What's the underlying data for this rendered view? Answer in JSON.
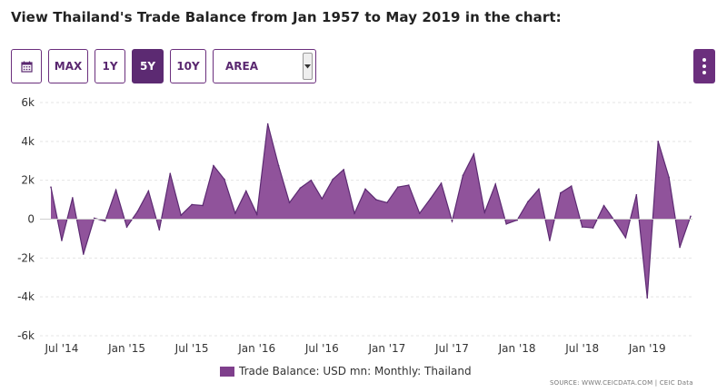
{
  "page": {
    "title": "View Thailand's Trade Balance from Jan 1957 to May 2019 in the chart:"
  },
  "toolbar": {
    "calendar_icon": "calendar-icon",
    "range_buttons": [
      "MAX",
      "1Y",
      "5Y",
      "10Y"
    ],
    "active_range": "5Y",
    "chart_type_select": {
      "value": "AREA",
      "icon": "chevron-down-icon"
    },
    "menu_icon": "kebab-menu-icon"
  },
  "colors": {
    "accent": "#5c2a72",
    "series_fill": "#8a4a96",
    "series_line": "#5c2a72"
  },
  "source": "SOURCE: WWW.CEICDATA.COM | CEIC Data",
  "chart_data": {
    "type": "area",
    "title": "",
    "xlabel": "",
    "ylabel": "",
    "ylim": [
      -6000,
      6000
    ],
    "y_ticks": [
      -6000,
      -4000,
      -2000,
      0,
      2000,
      4000,
      6000
    ],
    "y_tick_labels": [
      "-6k",
      "-4k",
      "-2k",
      "0",
      "2k",
      "4k",
      "6k"
    ],
    "x_tick_labels": [
      "Jul '14",
      "Jan '15",
      "Jul '15",
      "Jan '16",
      "Jul '16",
      "Jan '17",
      "Jul '17",
      "Jan '18",
      "Jul '18",
      "Jan '19"
    ],
    "x_tick_months": [
      "2014-07",
      "2015-01",
      "2015-07",
      "2016-01",
      "2016-07",
      "2017-01",
      "2017-07",
      "2018-01",
      "2018-07",
      "2019-01"
    ],
    "grid": true,
    "legend_position": "bottom-center",
    "series": [
      {
        "name": "Trade Balance: USD mn: Monthly: Thailand",
        "start_month": "2014-06",
        "values": [
          1650,
          -1100,
          1100,
          -1800,
          50,
          -100,
          1500,
          -400,
          400,
          1450,
          -550,
          2350,
          200,
          750,
          700,
          2750,
          2050,
          300,
          1450,
          250,
          4900,
          2750,
          850,
          1600,
          2000,
          1050,
          2050,
          2550,
          300,
          1550,
          1000,
          850,
          1650,
          1750,
          300,
          1050,
          1850,
          -100,
          2250,
          3350,
          350,
          1800,
          -250,
          -50,
          900,
          1550,
          -1100,
          1350,
          1700,
          -400,
          -450,
          700,
          -100,
          -950,
          1250,
          -4050,
          4000,
          2150,
          -1450,
          150
        ]
      }
    ]
  }
}
